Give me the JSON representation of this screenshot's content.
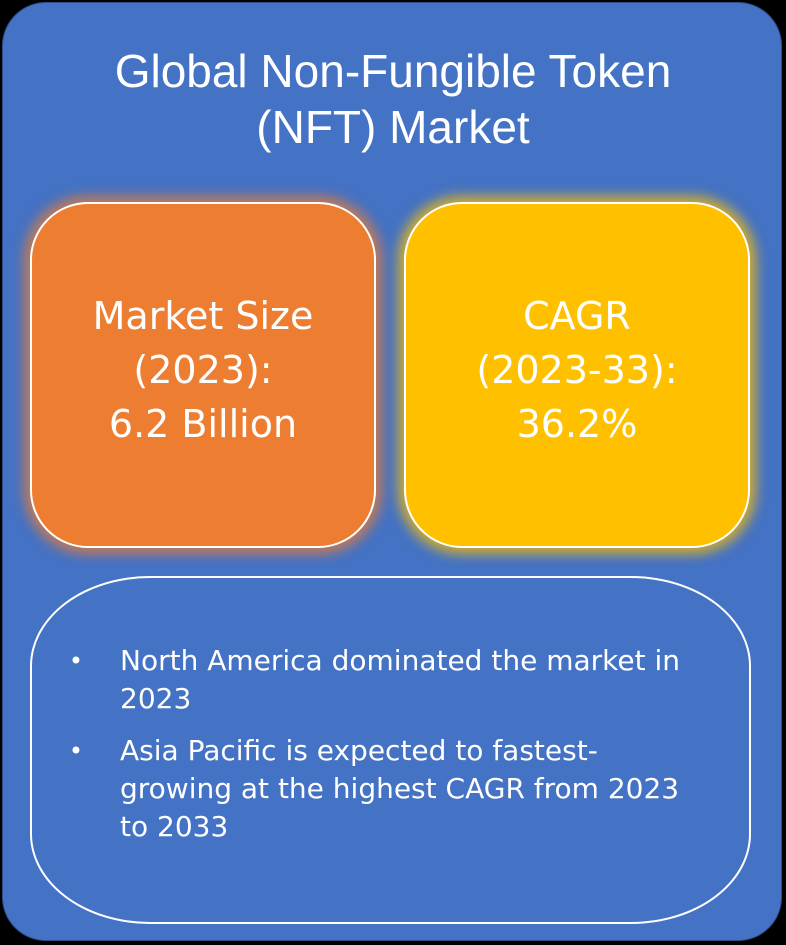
{
  "title": {
    "line1": "Global Non-Fungible Token",
    "line2": "(NFT) Market"
  },
  "market_size": {
    "line1": "Market Size",
    "line2": "(2023):",
    "line3": "6.2 Billion",
    "color": "#ED7D31"
  },
  "cagr": {
    "line1": "CAGR",
    "line2": "(2023-33):",
    "line3": "36.2%",
    "color": "#FFC000"
  },
  "highlights": {
    "bullet": "•",
    "items": [
      "North America dominated the market in 2023",
      "Asia Pacific is expected to fastest-growing at the highest CAGR from 2023 to 2033"
    ]
  },
  "colors": {
    "background": "#4472C4",
    "text": "#FFFFFF"
  }
}
